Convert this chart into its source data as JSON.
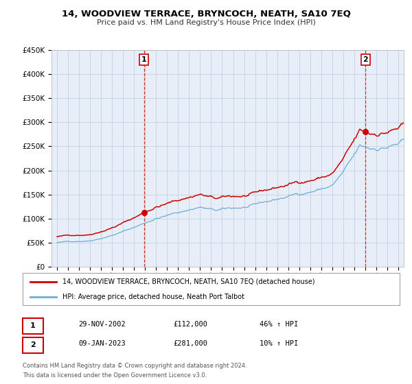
{
  "title": "14, WOODVIEW TERRACE, BRYNCOCH, NEATH, SA10 7EQ",
  "subtitle": "Price paid vs. HM Land Registry's House Price Index (HPI)",
  "legend_line1": "14, WOODVIEW TERRACE, BRYNCOCH, NEATH, SA10 7EQ (detached house)",
  "legend_line2": "HPI: Average price, detached house, Neath Port Talbot",
  "annotation1_label": "1",
  "annotation1_date": "29-NOV-2002",
  "annotation1_price": "£112,000",
  "annotation1_hpi": "46% ↑ HPI",
  "annotation2_label": "2",
  "annotation2_date": "09-JAN-2023",
  "annotation2_price": "£281,000",
  "annotation2_hpi": "10% ↑ HPI",
  "footnote1": "Contains HM Land Registry data © Crown copyright and database right 2024.",
  "footnote2": "This data is licensed under the Open Government Licence v3.0.",
  "sale1_year": 2002.91,
  "sale1_value": 112000,
  "sale2_year": 2023.03,
  "sale2_value": 281000,
  "hpi_color": "#6baed6",
  "price_color": "#cc0000",
  "background_color": "#e8eef8",
  "grid_color": "#c8d4e8",
  "ylim_max": 450000,
  "xlim_min": 1994.5,
  "xlim_max": 2026.5
}
